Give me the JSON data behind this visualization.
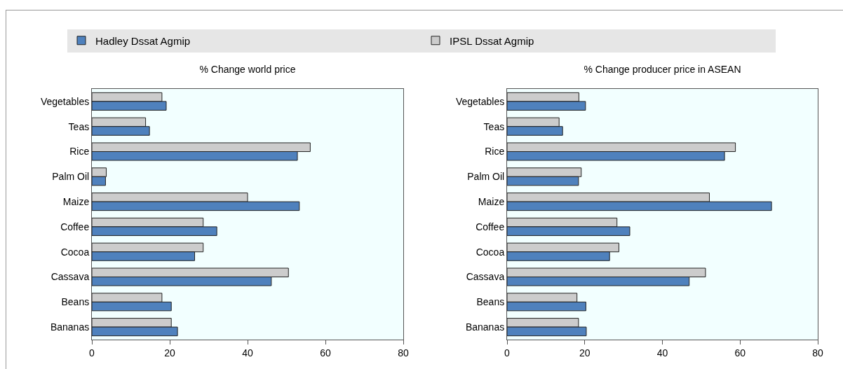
{
  "chart_data": [
    {
      "type": "bar",
      "orientation": "horizontal",
      "title": "% Change world price",
      "categories": [
        "Vegetables",
        "Teas",
        "Rice",
        "Palm Oil",
        "Maize",
        "Coffee",
        "Cocoa",
        "Cassava",
        "Beans",
        "Bananas"
      ],
      "series": [
        {
          "name": "Hadley Dssat Agmip",
          "color": "#4f81bd",
          "values": [
            19.1,
            14.8,
            52.8,
            3.5,
            53.3,
            32.1,
            26.4,
            46.1,
            20.4,
            22.0
          ]
        },
        {
          "name": "IPSL Dssat Agmip",
          "color": "#cccccc",
          "values": [
            18.0,
            13.8,
            56.1,
            3.7,
            40.0,
            28.6,
            28.6,
            50.5,
            18.0,
            20.4
          ]
        }
      ],
      "xlim": [
        0,
        80
      ],
      "xticks": [
        0,
        20,
        40,
        60,
        80
      ],
      "grid": false,
      "legend": "top"
    },
    {
      "type": "bar",
      "orientation": "horizontal",
      "title": "% Change producer price in ASEAN",
      "categories": [
        "Vegetables",
        "Teas",
        "Rice",
        "Palm Oil",
        "Maize",
        "Coffee",
        "Cocoa",
        "Cassava",
        "Beans",
        "Bananas"
      ],
      "series": [
        {
          "color": "#4f81bd",
          "values": [
            20.2,
            14.3,
            56.0,
            18.4,
            68.1,
            31.6,
            26.4,
            46.9,
            20.3,
            20.4
          ]
        },
        {
          "color": "#cccccc",
          "values": [
            18.5,
            13.4,
            58.8,
            19.1,
            52.1,
            28.3,
            28.8,
            51.1,
            18.0,
            18.4
          ]
        }
      ],
      "xlim": [
        0,
        80
      ],
      "xticks": [
        0,
        20,
        40,
        60,
        80
      ],
      "grid": false,
      "legend": false
    }
  ]
}
